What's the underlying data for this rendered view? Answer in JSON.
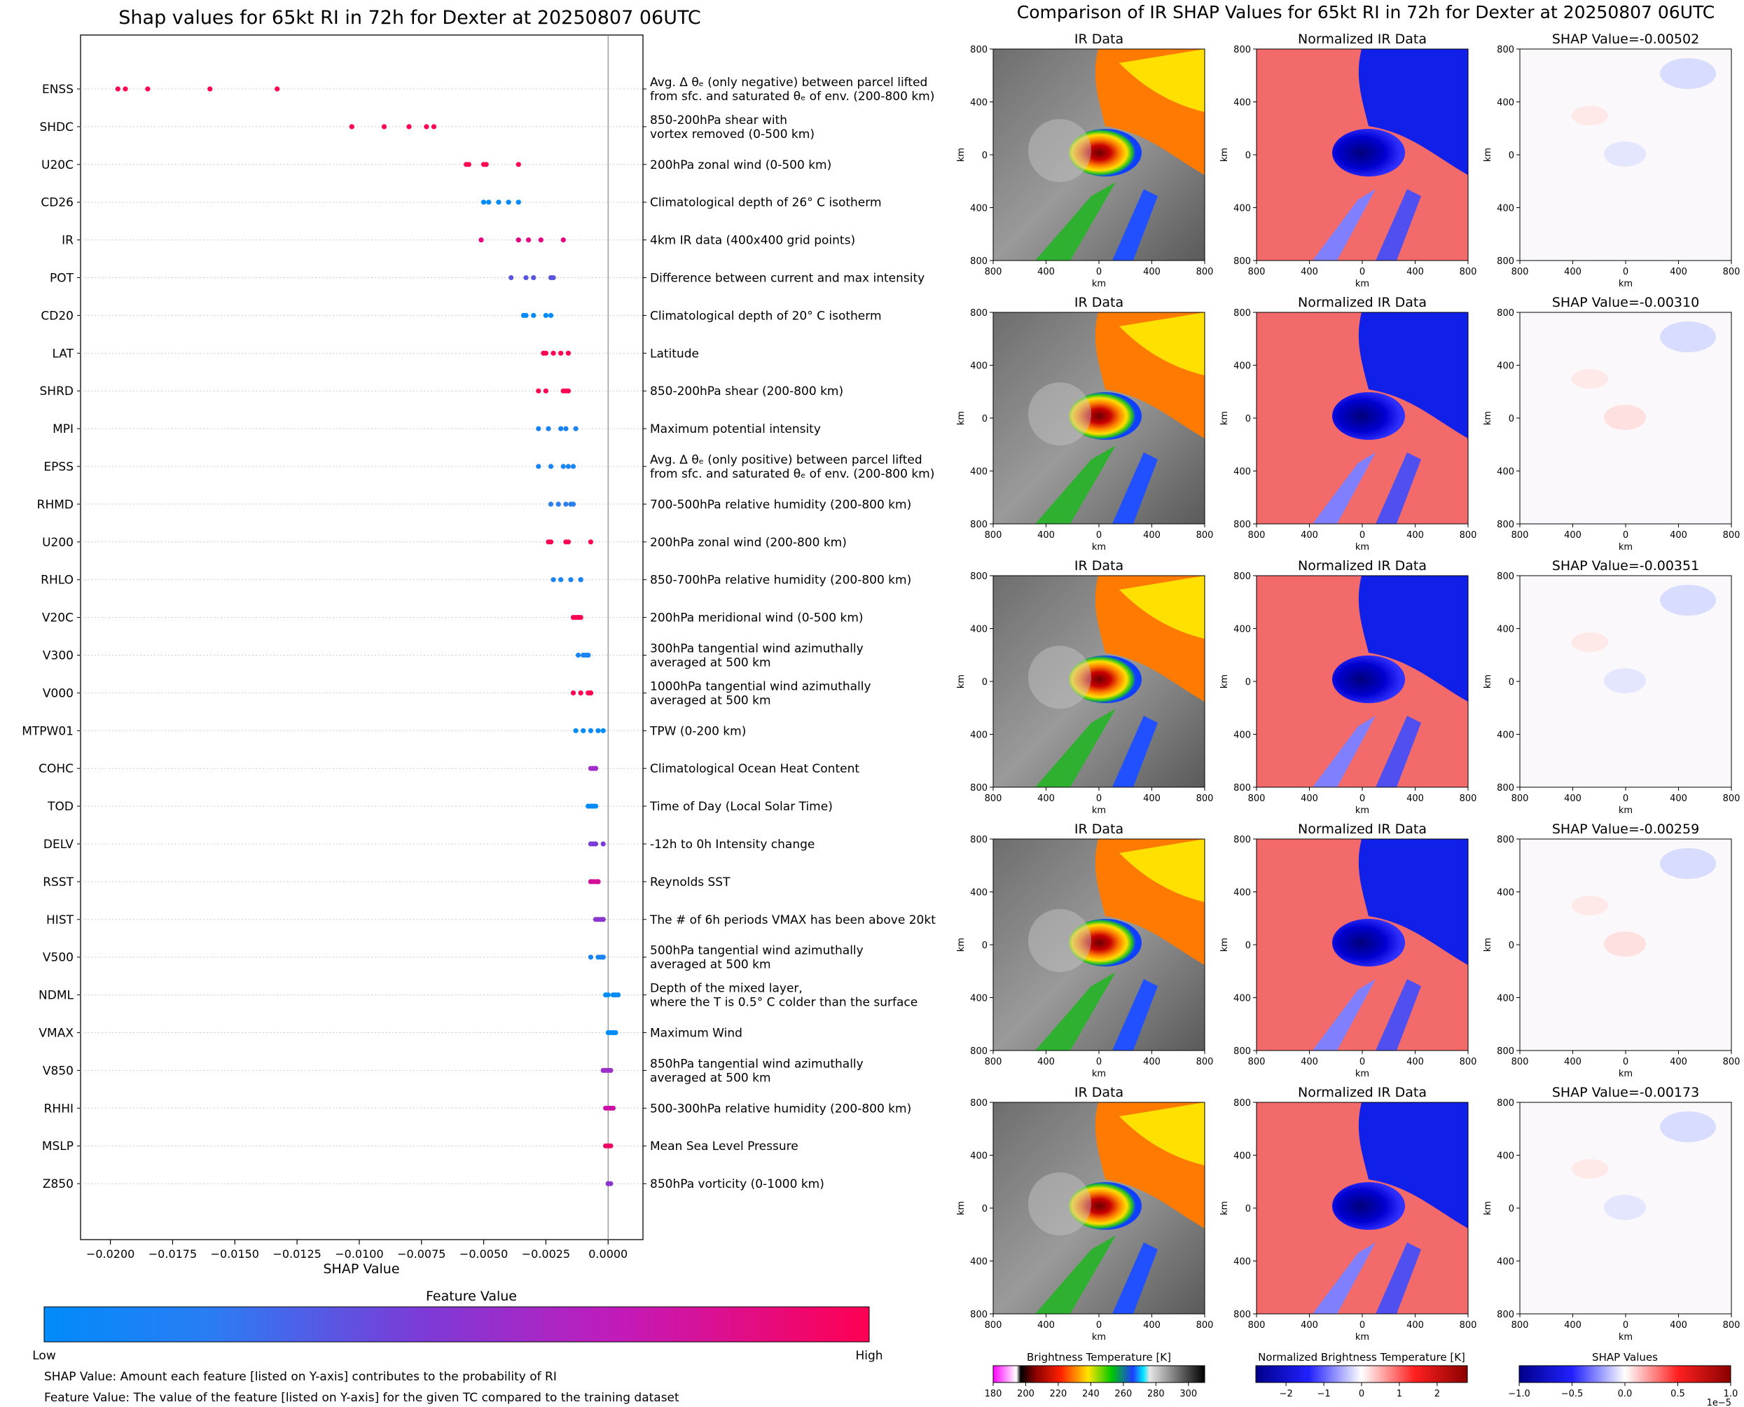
{
  "chart_data": [
    {
      "type": "scatter",
      "title": "Shap values for 65kt RI in 72h for Dexter at 20250807 06UTC",
      "xlabel": "SHAP Value",
      "xlim": [
        -0.0212,
        0.0014
      ],
      "xticks": [
        -0.02,
        -0.0175,
        -0.015,
        -0.0125,
        -0.01,
        -0.0075,
        -0.005,
        -0.0025,
        0.0
      ],
      "xtick_labels": [
        "−0.0200",
        "−0.0175",
        "−0.0150",
        "−0.0125",
        "−0.0100",
        "−0.0075",
        "−0.0050",
        "−0.0025",
        "0.0000"
      ],
      "colorbar": {
        "title": "Feature Value",
        "low_label": "Low",
        "high_label": "High",
        "colors": [
          "#008bfb",
          "#7a3cd8",
          "#c31ab9",
          "#ff0052"
        ]
      },
      "features": [
        {
          "name": "ENSS",
          "desc": [
            "Avg. Δ θₑ (only negative) between parcel lifted",
            "from sfc. and saturated θₑ of env. (200-800 km)"
          ],
          "shap": [
            -0.0197,
            -0.0194,
            -0.0185,
            -0.016,
            -0.0133
          ],
          "color": "#ff0052"
        },
        {
          "name": "SHDC",
          "desc": [
            "850-200hPa shear with",
            "vortex removed (0-500 km)"
          ],
          "shap": [
            -0.0103,
            -0.009,
            -0.008,
            -0.0073,
            -0.007
          ],
          "color": "#ff0052"
        },
        {
          "name": "U20C",
          "desc": [
            "200hPa zonal wind (0-500 km)"
          ],
          "shap": [
            -0.0057,
            -0.0056,
            -0.005,
            -0.0049,
            -0.0036
          ],
          "color": "#ff0052"
        },
        {
          "name": "CD26",
          "desc": [
            "Climatological depth of 26° C isotherm"
          ],
          "shap": [
            -0.005,
            -0.0048,
            -0.0044,
            -0.004,
            -0.0036
          ],
          "color": "#008bfb"
        },
        {
          "name": "IR",
          "desc": [
            "4km IR data (400x400 grid points)"
          ],
          "shap": [
            -0.0051,
            -0.0036,
            -0.0032,
            -0.0027,
            -0.0018
          ],
          "color": "#e5007f"
        },
        {
          "name": "POT",
          "desc": [
            "Difference between current and max intensity"
          ],
          "shap": [
            -0.0039,
            -0.0033,
            -0.003,
            -0.0023,
            -0.0022
          ],
          "color": "#5a55e0"
        },
        {
          "name": "CD20",
          "desc": [
            "Climatological depth of 20° C isotherm"
          ],
          "shap": [
            -0.0034,
            -0.0033,
            -0.003,
            -0.0025,
            -0.0023
          ],
          "color": "#008bfb"
        },
        {
          "name": "LAT",
          "desc": [
            "Latitude"
          ],
          "shap": [
            -0.0026,
            -0.0025,
            -0.0022,
            -0.0019,
            -0.0016
          ],
          "color": "#ff0052"
        },
        {
          "name": "SHRD",
          "desc": [
            "850-200hPa shear (200-800 km)"
          ],
          "shap": [
            -0.0028,
            -0.0025,
            -0.0018,
            -0.0017,
            -0.0016
          ],
          "color": "#ff0052"
        },
        {
          "name": "MPI",
          "desc": [
            "Maximum potential intensity"
          ],
          "shap": [
            -0.0028,
            -0.0024,
            -0.0019,
            -0.0017,
            -0.0013
          ],
          "color": "#1a84f4"
        },
        {
          "name": "EPSS",
          "desc": [
            "Avg. Δ θₑ (only positive) between parcel lifted",
            "from sfc. and saturated θₑ of env. (200-800 km)"
          ],
          "shap": [
            -0.0028,
            -0.0023,
            -0.0018,
            -0.0016,
            -0.0014
          ],
          "color": "#1a84f4"
        },
        {
          "name": "RHMD",
          "desc": [
            "700-500hPa relative humidity (200-800 km)"
          ],
          "shap": [
            -0.0023,
            -0.002,
            -0.0017,
            -0.0015,
            -0.0014
          ],
          "color": "#2d7ef0"
        },
        {
          "name": "U200",
          "desc": [
            "200hPa zonal wind (200-800 km)"
          ],
          "shap": [
            -0.0024,
            -0.0023,
            -0.0017,
            -0.0016,
            -0.0007
          ],
          "color": "#ff0052"
        },
        {
          "name": "RHLO",
          "desc": [
            "850-700hPa relative humidity (200-800 km)"
          ],
          "shap": [
            -0.0022,
            -0.0019,
            -0.0015,
            -0.0011,
            -0.0011
          ],
          "color": "#1a84f4"
        },
        {
          "name": "V20C",
          "desc": [
            "200hPa meridional wind (0-500 km)"
          ],
          "shap": [
            -0.0014,
            -0.0013,
            -0.0012,
            -0.0012,
            -0.0011
          ],
          "color": "#ff0052"
        },
        {
          "name": "V300",
          "desc": [
            "300hPa tangential wind azimuthally",
            "averaged at 500 km"
          ],
          "shap": [
            -0.0012,
            -0.001,
            -0.0009,
            -0.0008,
            -0.0008
          ],
          "color": "#1a84f4"
        },
        {
          "name": "V000",
          "desc": [
            "1000hPa tangential wind azimuthally",
            "averaged at 500 km"
          ],
          "shap": [
            -0.0014,
            -0.0011,
            -0.0008,
            -0.0007,
            -0.0007
          ],
          "color": "#ff0052"
        },
        {
          "name": "MTPW01",
          "desc": [
            "TPW (0-200 km)"
          ],
          "shap": [
            -0.0013,
            -0.001,
            -0.0007,
            -0.0004,
            -0.0002
          ],
          "color": "#008bfb"
        },
        {
          "name": "COHC",
          "desc": [
            "Climatological Ocean Heat Content"
          ],
          "shap": [
            -0.0007,
            -0.0006,
            -0.0006,
            -0.0005,
            -0.0005
          ],
          "color": "#a12ec9"
        },
        {
          "name": "TOD",
          "desc": [
            "Time of Day (Local Solar Time)"
          ],
          "shap": [
            -0.0008,
            -0.0007,
            -0.0006,
            -0.0006,
            -0.0005
          ],
          "color": "#008bfb"
        },
        {
          "name": "DELV",
          "desc": [
            "-12h to 0h Intensity change"
          ],
          "shap": [
            -0.0007,
            -0.0006,
            -0.0005,
            -0.0002
          ],
          "color": "#7a3cd8"
        },
        {
          "name": "RSST",
          "desc": [
            "Reynolds SST"
          ],
          "shap": [
            -0.0007,
            -0.0006,
            -0.0005,
            -0.0004,
            -0.0004
          ],
          "color": "#d30f9a"
        },
        {
          "name": "HIST",
          "desc": [
            "The # of 6h periods VMAX has been above 20kt"
          ],
          "shap": [
            -0.0005,
            -0.0004,
            -0.0003,
            -0.0002,
            -0.0002
          ],
          "color": "#8b35cf"
        },
        {
          "name": "V500",
          "desc": [
            "500hPa tangential wind azimuthally",
            "averaged at 500 km"
          ],
          "shap": [
            -0.0007,
            -0.0004,
            -0.0003,
            -0.0002,
            -0.0002
          ],
          "color": "#1a84f4"
        },
        {
          "name": "NDML",
          "desc": [
            "Depth of the mixed layer,",
            "where the T is 0.5° C colder than the surface"
          ],
          "shap": [
            -0.0001,
            0.0,
            0.0002,
            0.0003,
            0.0004
          ],
          "color": "#008bfb"
        },
        {
          "name": "VMAX",
          "desc": [
            "Maximum Wind"
          ],
          "shap": [
            0.0,
            0.0001,
            0.0002,
            0.0002,
            0.0003
          ],
          "color": "#008bfb"
        },
        {
          "name": "V850",
          "desc": [
            "850hPa tangential wind azimuthally",
            "averaged at 500 km"
          ],
          "shap": [
            -0.0002,
            -0.0001,
            0.0,
            0.0001
          ],
          "color": "#9b30c8"
        },
        {
          "name": "RHHI",
          "desc": [
            "500-300hPa relative humidity (200-800 km)"
          ],
          "shap": [
            -0.0001,
            0.0,
            0.0001,
            0.0002
          ],
          "color": "#cc10a4"
        },
        {
          "name": "MSLP",
          "desc": [
            "Mean Sea Level Pressure"
          ],
          "shap": [
            -0.0001,
            0.0,
            0.0,
            0.0001
          ],
          "color": "#f00064"
        },
        {
          "name": "Z850",
          "desc": [
            "850hPa vorticity (0-1000 km)"
          ],
          "shap": [
            0.0,
            0.0,
            0.0001
          ],
          "color": "#8b35cf"
        }
      ],
      "annotations": [
        "SHAP Value: Amount each feature [listed on Y-axis] contributes to the probability of RI",
        "Feature Value: The value of the feature [listed on Y-axis] for the given TC compared to the training dataset"
      ]
    },
    {
      "type": "heatmap",
      "title": "Comparison of IR SHAP Values for 65kt RI in 72h for Dexter at 20250807 06UTC",
      "column_titles": [
        "IR Data",
        "Normalized IR Data"
      ],
      "shap_title_prefix": "SHAP Value=",
      "shap_values": [
        "-0.00502",
        "-0.00310",
        "-0.00351",
        "-0.00259",
        "-0.00173"
      ],
      "axis_label": "km",
      "axis_ticks": [
        "800",
        "400",
        "0",
        "400",
        "800"
      ],
      "colorbars": [
        {
          "label": "Brightness Temperature [K]",
          "ticks": [
            "180",
            "200",
            "220",
            "240",
            "260",
            "280",
            "300"
          ],
          "range": [
            180,
            310
          ]
        },
        {
          "label": "Normalized Brightness Temperature [K]",
          "ticks": [
            "−2",
            "−1",
            "0",
            "1",
            "2"
          ],
          "range": [
            -2.8,
            2.8
          ]
        },
        {
          "label": "SHAP Values",
          "ticks": [
            "−1.0",
            "−0.5",
            "0.0",
            "0.5",
            "1.0"
          ],
          "range": [
            -1.0,
            1.0
          ],
          "offset_text": "1e−5"
        }
      ]
    }
  ]
}
